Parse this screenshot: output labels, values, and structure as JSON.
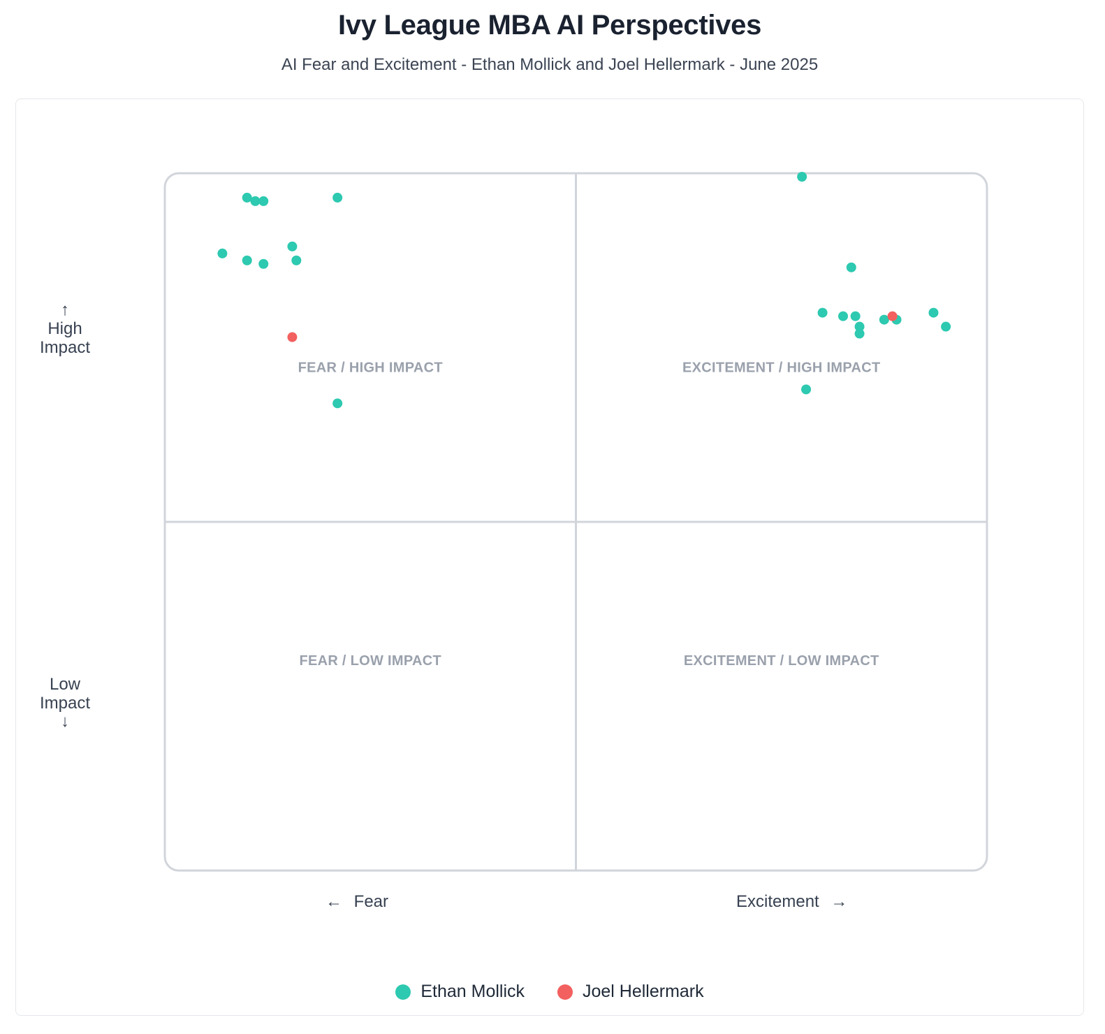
{
  "header": {
    "title": "Ivy League MBA AI Perspectives",
    "subtitle": "AI Fear and Excitement - Ethan Mollick and Joel Hellermark - June 2025"
  },
  "axes": {
    "y_high_arrow": "↑",
    "y_high": "High\nImpact",
    "y_low": "Low\nImpact",
    "y_low_arrow": "↓",
    "x_left_arrow": "←",
    "x_left": "Fear",
    "x_right": "Excitement",
    "x_right_arrow": "→"
  },
  "chart_data": {
    "type": "scatter",
    "title": "Ivy League MBA AI Perspectives",
    "subtitle": "AI Fear and Excitement - Ethan Mollick and Joel Hellermark - June 2025",
    "xlabel": "Fear ← → Excitement",
    "ylabel": "Low Impact ↓ ↑ High Impact",
    "xlim": [
      -1,
      1
    ],
    "ylim": [
      -1,
      1
    ],
    "grid": false,
    "legend": "bottom-center",
    "quadrants": [
      {
        "label": "FEAR / HIGH IMPACT",
        "position": "top-left"
      },
      {
        "label": "EXCITEMENT / HIGH IMPACT",
        "position": "top-right"
      },
      {
        "label": "FEAR / LOW IMPACT",
        "position": "bottom-left"
      },
      {
        "label": "EXCITEMENT / LOW IMPACT",
        "position": "bottom-right"
      }
    ],
    "series": [
      {
        "name": "Ethan Mollick",
        "color": "#2dc9b0",
        "x": [
          -0.8,
          -0.78,
          -0.76,
          -0.58,
          -0.86,
          -0.8,
          -0.76,
          -0.69,
          -0.68,
          -0.58,
          0.55,
          0.67,
          0.6,
          0.65,
          0.68,
          0.69,
          0.69,
          0.75,
          0.78,
          0.87,
          0.9,
          0.56
        ],
        "y": [
          0.93,
          0.92,
          0.92,
          0.93,
          0.77,
          0.75,
          0.74,
          0.79,
          0.75,
          0.34,
          0.99,
          0.73,
          0.6,
          0.59,
          0.59,
          0.56,
          0.54,
          0.58,
          0.58,
          0.6,
          0.56,
          0.38
        ]
      },
      {
        "name": "Joel Hellermark",
        "color": "#f2605f",
        "x": [
          -0.69,
          0.77
        ],
        "y": [
          0.53,
          0.59
        ]
      }
    ]
  }
}
